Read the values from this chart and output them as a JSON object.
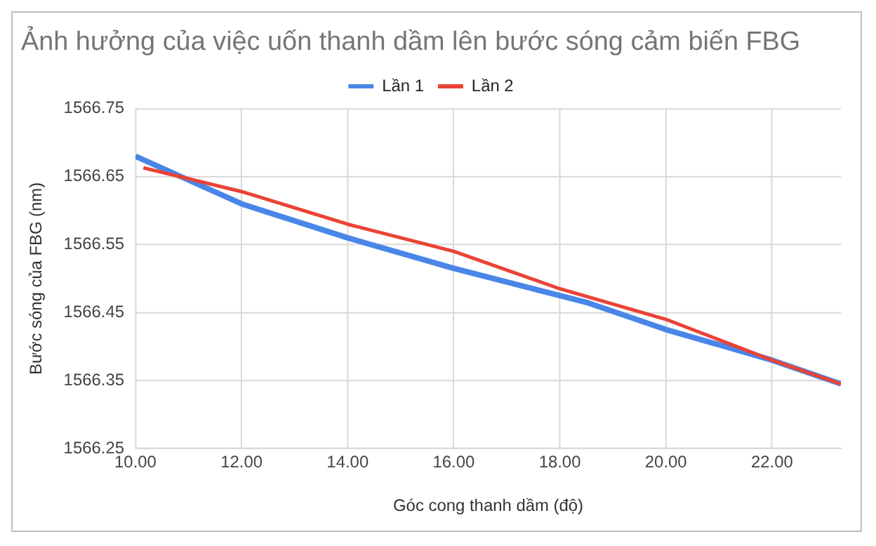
{
  "chart_data": {
    "type": "line",
    "title": "Ảnh hưởng của việc uốn thanh dầm lên bước sóng cảm biến FBG",
    "xlabel": "Góc cong thanh dầm (độ)",
    "ylabel": "Bước sóng của FBG (nm)",
    "series": [
      {
        "name": "Lần 1",
        "color": "#4a86e8",
        "x": [
          10,
          12,
          14,
          16,
          18.5,
          20,
          22,
          23.3
        ],
        "values": [
          1566.68,
          1566.61,
          1566.56,
          1566.515,
          1566.465,
          1566.425,
          1566.38,
          1566.345
        ]
      },
      {
        "name": "Lần 2",
        "color": "#ea4335",
        "x": [
          10.15,
          12,
          14,
          16,
          18,
          20,
          21,
          22,
          23.3
        ],
        "values": [
          1566.663,
          1566.628,
          1566.58,
          1566.54,
          1566.485,
          1566.44,
          1566.41,
          1566.38,
          1566.345
        ]
      }
    ],
    "xlim": [
      10,
      23.3
    ],
    "xticks": [
      {
        "value": 10,
        "label": "10.00"
      },
      {
        "value": 12,
        "label": "12.00"
      },
      {
        "value": 14,
        "label": "14.00"
      },
      {
        "value": 16,
        "label": "16.00"
      },
      {
        "value": 18,
        "label": "18.00"
      },
      {
        "value": 20,
        "label": "20.00"
      },
      {
        "value": 22,
        "label": "22.00"
      }
    ],
    "ylim": [
      1566.25,
      1566.75
    ],
    "yticks": [
      1566.25,
      1566.35,
      1566.45,
      1566.55,
      1566.65,
      1566.75
    ],
    "grid": true,
    "legend": "top",
    "marker": "none",
    "line_style": "solid"
  }
}
